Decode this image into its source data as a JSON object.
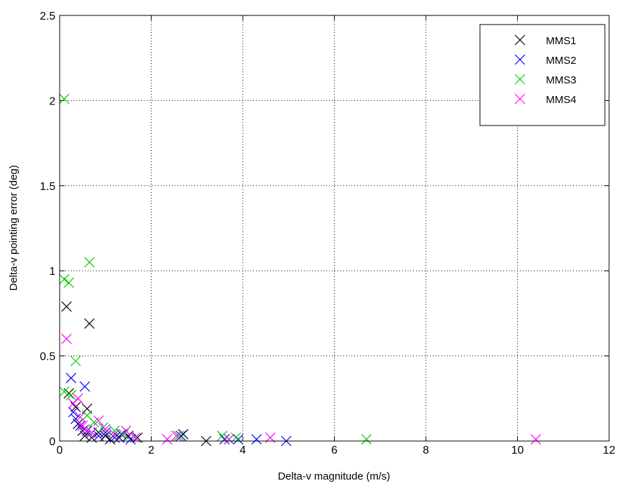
{
  "chart_data": {
    "type": "scatter",
    "xlabel": "Delta-v magnitude (m/s)",
    "ylabel": "Delta-v pointing error (deg)",
    "xlim": [
      0,
      12
    ],
    "ylim": [
      0,
      2.5
    ],
    "xticks": [
      0,
      2,
      4,
      6,
      8,
      10,
      12
    ],
    "yticks": [
      0,
      0.5,
      1,
      1.5,
      2,
      2.5
    ],
    "xtick_labels": [
      "0",
      "2",
      "4",
      "6",
      "8",
      "10",
      "12"
    ],
    "ytick_labels": [
      "0",
      "0.5",
      "1",
      "1.5",
      "2",
      "2.5"
    ],
    "grid": true,
    "grid_style": "dotted",
    "marker": "x",
    "legend_position": "top-right",
    "series": [
      {
        "name": "MMS1",
        "color": "#000000",
        "points": [
          [
            0.15,
            0.79
          ],
          [
            0.65,
            0.69
          ],
          [
            0.2,
            0.28
          ],
          [
            0.35,
            0.2
          ],
          [
            0.6,
            0.19
          ],
          [
            0.4,
            0.1
          ],
          [
            0.5,
            0.06
          ],
          [
            0.55,
            0.03
          ],
          [
            0.7,
            0.02
          ],
          [
            0.85,
            0.05
          ],
          [
            1.0,
            0.03
          ],
          [
            1.1,
            0.01
          ],
          [
            1.3,
            0.02
          ],
          [
            1.5,
            0.03
          ],
          [
            1.7,
            0.02
          ],
          [
            2.7,
            0.04
          ],
          [
            3.2,
            0.0
          ]
        ]
      },
      {
        "name": "MMS2",
        "color": "#0000ff",
        "points": [
          [
            0.25,
            0.37
          ],
          [
            0.55,
            0.32
          ],
          [
            0.3,
            0.17
          ],
          [
            0.35,
            0.13
          ],
          [
            0.45,
            0.09
          ],
          [
            0.6,
            0.06
          ],
          [
            0.7,
            0.05
          ],
          [
            0.85,
            0.03
          ],
          [
            1.0,
            0.05
          ],
          [
            1.2,
            0.02
          ],
          [
            1.35,
            0.04
          ],
          [
            1.55,
            0.01
          ],
          [
            2.65,
            0.03
          ],
          [
            3.6,
            0.01
          ],
          [
            3.9,
            0.01
          ],
          [
            4.3,
            0.01
          ],
          [
            4.95,
            0.0
          ]
        ]
      },
      {
        "name": "MMS3",
        "color": "#00cc00",
        "points": [
          [
            0.1,
            2.01
          ],
          [
            0.65,
            1.05
          ],
          [
            0.1,
            0.95
          ],
          [
            0.2,
            0.93
          ],
          [
            0.35,
            0.47
          ],
          [
            0.1,
            0.29
          ],
          [
            0.25,
            0.27
          ],
          [
            0.6,
            0.15
          ],
          [
            0.75,
            0.11
          ],
          [
            0.95,
            0.08
          ],
          [
            1.2,
            0.06
          ],
          [
            1.4,
            0.04
          ],
          [
            2.6,
            0.03
          ],
          [
            3.55,
            0.03
          ],
          [
            3.7,
            0.01
          ],
          [
            3.85,
            0.02
          ],
          [
            6.7,
            0.01
          ]
        ]
      },
      {
        "name": "MMS4",
        "color": "#ff00ff",
        "points": [
          [
            0.15,
            0.6
          ],
          [
            0.3,
            0.22
          ],
          [
            0.4,
            0.25
          ],
          [
            0.45,
            0.14
          ],
          [
            0.5,
            0.09
          ],
          [
            0.55,
            0.07
          ],
          [
            0.7,
            0.05
          ],
          [
            0.85,
            0.12
          ],
          [
            1.0,
            0.07
          ],
          [
            1.2,
            0.04
          ],
          [
            1.45,
            0.06
          ],
          [
            1.65,
            0.02
          ],
          [
            2.35,
            0.01
          ],
          [
            2.55,
            0.03
          ],
          [
            3.7,
            0.01
          ],
          [
            4.6,
            0.02
          ],
          [
            10.4,
            0.01
          ]
        ]
      }
    ]
  }
}
